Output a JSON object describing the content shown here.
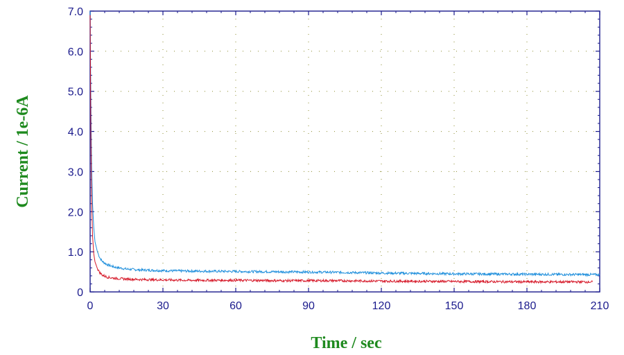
{
  "chart_data": {
    "type": "line",
    "title": "",
    "xlabel": "Time / sec",
    "ylabel": "Current / 1e-6A",
    "xlim": [
      0,
      210
    ],
    "ylim": [
      0,
      7.0
    ],
    "x_ticks": [
      0,
      30,
      60,
      90,
      120,
      150,
      180,
      210
    ],
    "x_tick_labels": [
      "0",
      "30",
      "60",
      "90",
      "120",
      "150",
      "180",
      "210"
    ],
    "y_ticks": [
      0,
      1.0,
      2.0,
      3.0,
      4.0,
      5.0,
      6.0,
      7.0
    ],
    "y_tick_labels": [
      "0",
      "1.0",
      "2.0",
      "3.0",
      "4.0",
      "5.0",
      "6.0",
      "7.0"
    ],
    "grid": true,
    "legend": "none",
    "series": [
      {
        "color": "#1f8fdc",
        "x": [
          0,
          0.3,
          0.6,
          1,
          1.5,
          2,
          3,
          4,
          5,
          7,
          10,
          15,
          20,
          30,
          40,
          60,
          80,
          100,
          120,
          150,
          180,
          210
        ],
        "y": [
          7.0,
          4.8,
          3.2,
          2.2,
          1.6,
          1.25,
          1.0,
          0.85,
          0.76,
          0.68,
          0.62,
          0.57,
          0.55,
          0.53,
          0.52,
          0.51,
          0.5,
          0.49,
          0.47,
          0.45,
          0.44,
          0.43
        ]
      },
      {
        "color": "#d61a2a",
        "x": [
          0,
          0.3,
          0.6,
          1,
          1.5,
          2,
          3,
          4,
          5,
          7,
          10,
          15,
          20,
          30,
          40,
          60,
          80,
          100,
          120,
          150,
          180,
          207
        ],
        "y": [
          6.9,
          4.0,
          2.3,
          1.4,
          0.95,
          0.75,
          0.58,
          0.48,
          0.42,
          0.37,
          0.34,
          0.32,
          0.31,
          0.3,
          0.29,
          0.29,
          0.28,
          0.28,
          0.27,
          0.26,
          0.25,
          0.25
        ]
      }
    ]
  }
}
